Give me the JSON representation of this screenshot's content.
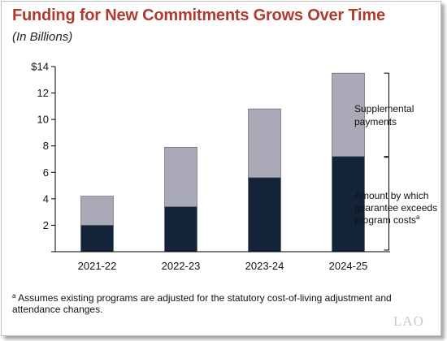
{
  "header": {
    "title": "Funding for New Commitments Grows Over Time",
    "subtitle": "(In Billions)"
  },
  "colors": {
    "title": "#b03a2e",
    "supplemental": "#a9a9b8",
    "guarantee": "#13243a"
  },
  "chart_data": {
    "type": "bar",
    "stacked": true,
    "categories": [
      "2021-22",
      "2022-23",
      "2023-24",
      "2024-25"
    ],
    "series": [
      {
        "name": "Amount by which guarantee exceeds program costs",
        "values": [
          2.0,
          3.4,
          5.6,
          7.2
        ]
      },
      {
        "name": "Supplemental payments",
        "values": [
          2.2,
          4.5,
          5.2,
          6.3
        ]
      }
    ],
    "ylim": [
      0,
      14
    ],
    "yticks": [
      0,
      2,
      4,
      6,
      8,
      10,
      12,
      14
    ],
    "ytick_labels": [
      "",
      "2",
      "4",
      "6",
      "8",
      "10",
      "12",
      "$14"
    ],
    "legend_position": "right (bracketed labels)",
    "grid": false
  },
  "annotations": {
    "supplemental_lines": [
      "Supplemental",
      "payments"
    ],
    "guarantee_lines": [
      "Amount by which",
      "guarantee exceeds",
      "program costs"
    ],
    "guarantee_marker": "a"
  },
  "footnote": {
    "marker": "a",
    "text": "Assumes existing programs are adjusted for the statutory cost-of-living adjustment and attendance changes."
  },
  "logo": "LAO"
}
